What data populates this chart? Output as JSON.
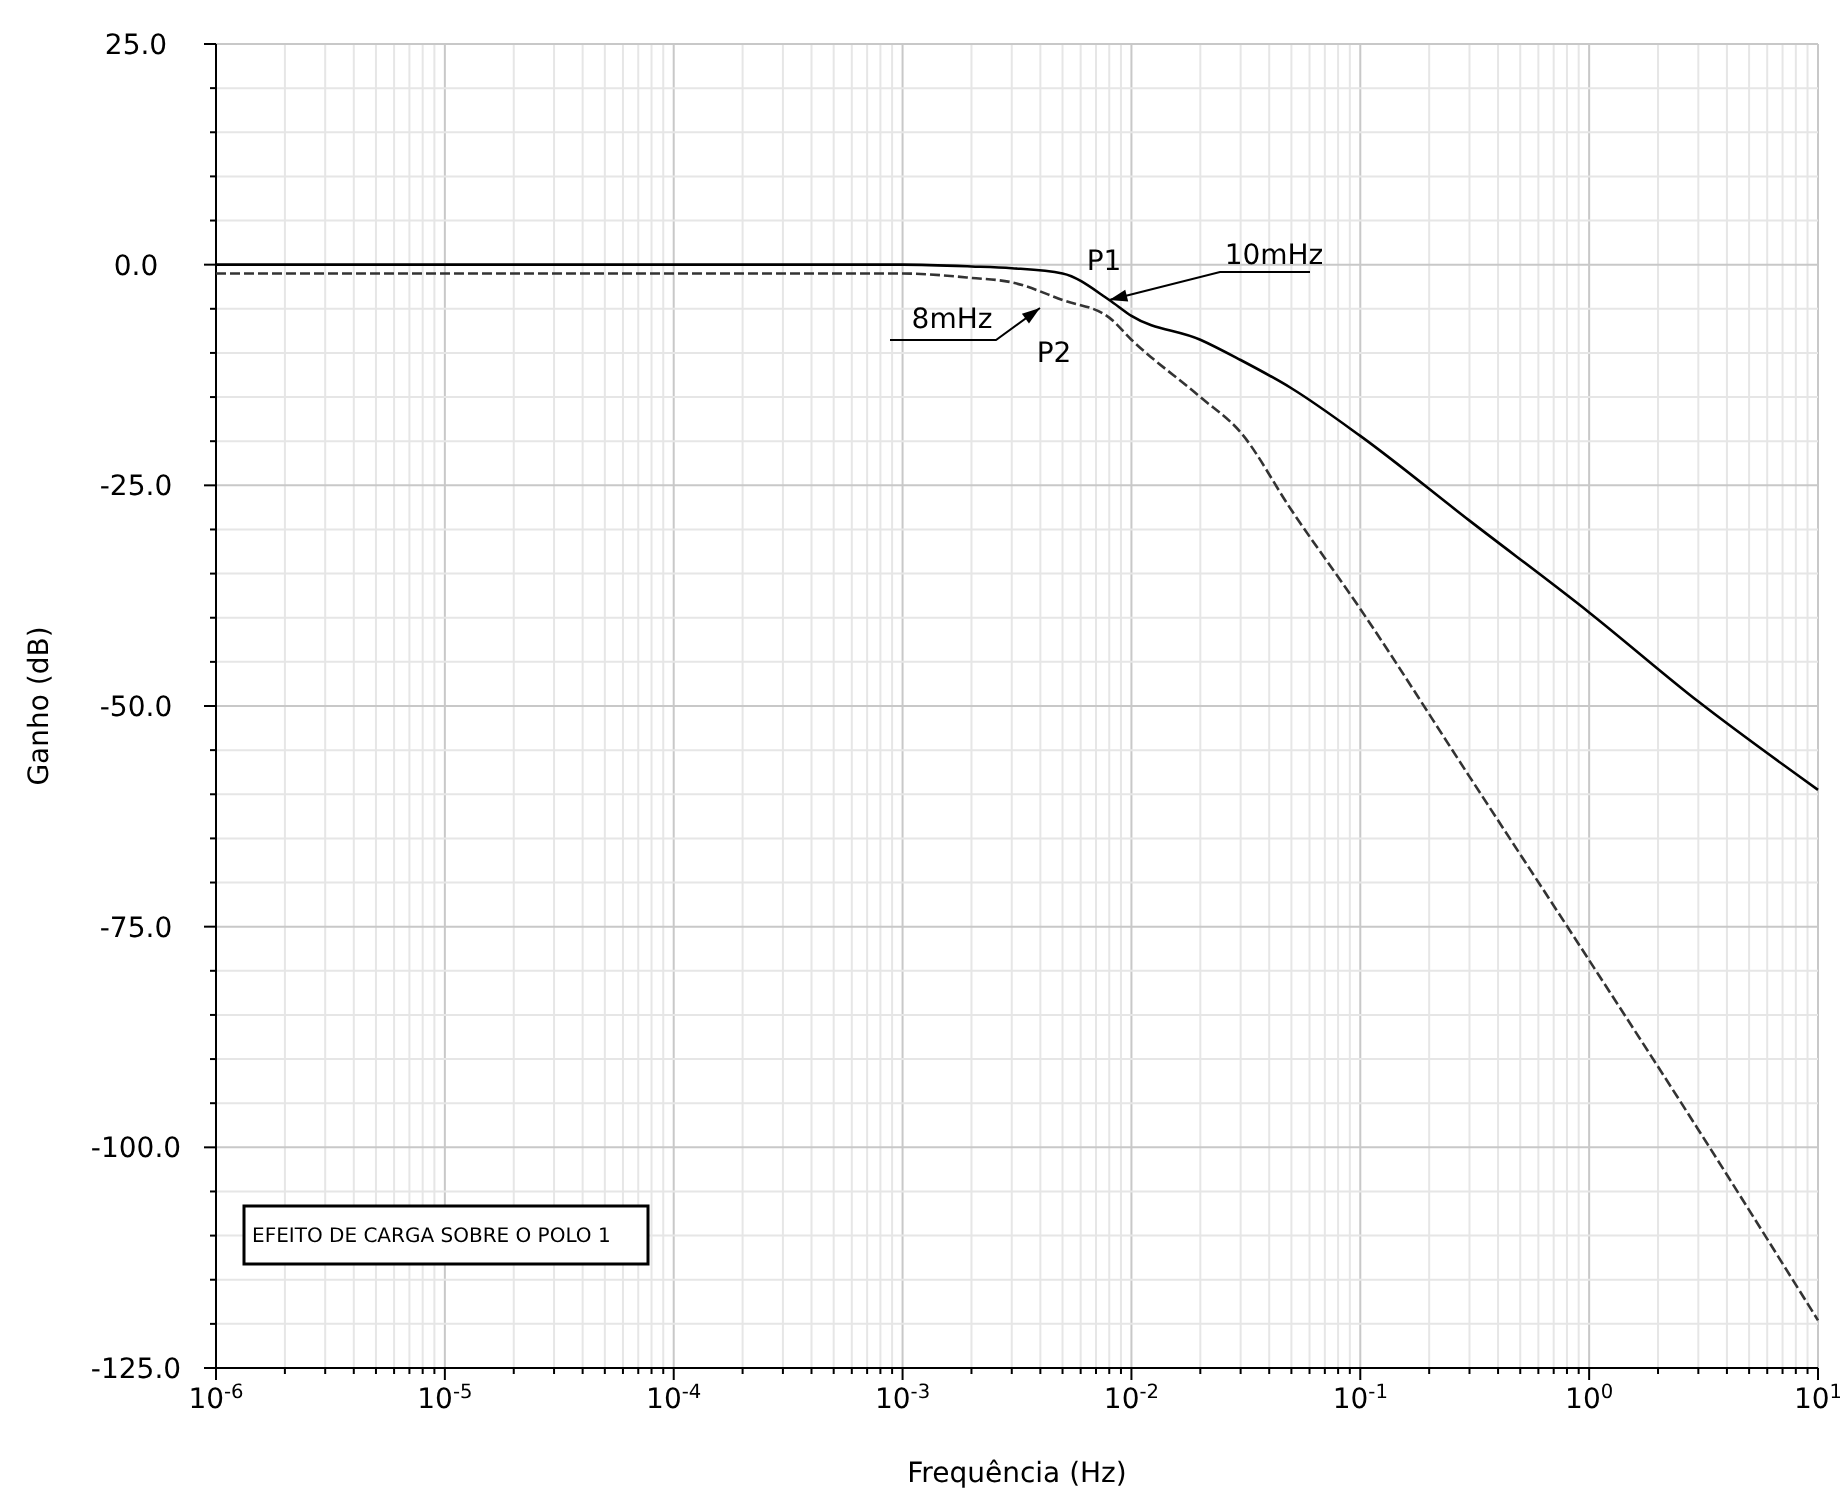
{
  "chart_data": {
    "type": "line",
    "xlabel": "Frequência (Hz)",
    "ylabel": "Ganho (dB)",
    "log": "x",
    "grid": true,
    "marker": "none",
    "xlim": [
      1e-06,
      10
    ],
    "ylim": [
      -125,
      25
    ],
    "xticks": [
      {
        "value": 1e-06,
        "label": "10$^{-6}$"
      },
      {
        "value": 2e-06,
        "label": null
      },
      {
        "value": 3e-06,
        "label": null
      },
      {
        "value": 4e-06,
        "label": null
      },
      {
        "value": 5e-06,
        "label": null
      },
      {
        "value": 6e-06,
        "label": null
      },
      {
        "value": 7e-06,
        "label": null
      },
      {
        "value": 8e-06,
        "label": null
      },
      {
        "value": 9e-06,
        "label": null
      },
      {
        "value": 1e-05,
        "label": "10$^{-5}$"
      },
      {
        "value": 2e-05,
        "label": null
      },
      {
        "value": 3e-05,
        "label": null
      },
      {
        "value": 4e-05,
        "label": null
      },
      {
        "value": 5e-05,
        "label": null
      },
      {
        "value": 6e-05,
        "label": null
      },
      {
        "value": 7e-05,
        "label": null
      },
      {
        "value": 8e-05,
        "label": null
      },
      {
        "value": 9e-05,
        "label": null
      },
      {
        "value": 0.0001,
        "label": "10$^{-4}$"
      },
      {
        "value": 0.0002,
        "label": null
      },
      {
        "value": 0.0003,
        "label": null
      },
      {
        "value": 0.0004,
        "label": null
      },
      {
        "value": 0.0005,
        "label": null
      },
      {
        "value": 0.0006,
        "label": null
      },
      {
        "value": 0.0007,
        "label": null
      },
      {
        "value": 0.0008,
        "label": null
      },
      {
        "value": 0.0009,
        "label": null
      },
      {
        "value": 0.001,
        "label": "10$^{-3}$"
      },
      {
        "value": 0.002,
        "label": null
      },
      {
        "value": 0.003,
        "label": null
      },
      {
        "value": 0.004,
        "label": null
      },
      {
        "value": 0.005,
        "label": null
      },
      {
        "value": 0.006,
        "label": null
      },
      {
        "value": 0.007,
        "label": null
      },
      {
        "value": 0.008,
        "label": null
      },
      {
        "value": 0.009,
        "label": null
      },
      {
        "value": 0.01,
        "label": "10$^{-2}$"
      },
      {
        "value": 0.02,
        "label": null
      },
      {
        "value": 0.03,
        "label": null
      },
      {
        "value": 0.04,
        "label": null
      },
      {
        "value": 0.05,
        "label": null
      },
      {
        "value": 0.06,
        "label": null
      },
      {
        "value": 0.07,
        "label": null
      },
      {
        "value": 0.08,
        "label": null
      },
      {
        "value": 0.09,
        "label": null
      },
      {
        "value": 0.1,
        "label": "10$^{-1}$"
      },
      {
        "value": 0.2,
        "label": null
      },
      {
        "value": 0.3,
        "label": null
      },
      {
        "value": 0.4,
        "label": null
      },
      {
        "value": 0.5,
        "label": null
      },
      {
        "value": 0.6,
        "label": null
      },
      {
        "value": 0.7,
        "label": null
      },
      {
        "value": 0.8,
        "label": null
      },
      {
        "value": 0.9,
        "label": null
      },
      {
        "value": 1,
        "label": "10$^{0}$"
      },
      {
        "value": 2,
        "label": null
      },
      {
        "value": 3,
        "label": null
      },
      {
        "value": 4,
        "label": null
      },
      {
        "value": 5,
        "label": null
      },
      {
        "value": 6,
        "label": null
      },
      {
        "value": 7,
        "label": null
      },
      {
        "value": 8,
        "label": null
      },
      {
        "value": 9,
        "label": null
      },
      {
        "value": 10,
        "label": "10$^{1}$"
      }
    ],
    "yticks": [
      {
        "value": -125,
        "label": "-125.0"
      },
      {
        "value": -120,
        "label": null
      },
      {
        "value": -115,
        "label": null
      },
      {
        "value": -110,
        "label": null
      },
      {
        "value": -105,
        "label": null
      },
      {
        "value": -100,
        "label": "-100.0"
      },
      {
        "value": -95,
        "label": null
      },
      {
        "value": -90,
        "label": null
      },
      {
        "value": -85,
        "label": null
      },
      {
        "value": -80,
        "label": null
      },
      {
        "value": -75,
        "label": "-75.0"
      },
      {
        "value": -70,
        "label": null
      },
      {
        "value": -65,
        "label": null
      },
      {
        "value": -60,
        "label": null
      },
      {
        "value": -55,
        "label": null
      },
      {
        "value": -50,
        "label": "-50.0"
      },
      {
        "value": -45,
        "label": null
      },
      {
        "value": -40,
        "label": null
      },
      {
        "value": -35,
        "label": null
      },
      {
        "value": -30,
        "label": null
      },
      {
        "value": -25,
        "label": "-25.0"
      },
      {
        "value": -20,
        "label": null
      },
      {
        "value": -15,
        "label": null
      },
      {
        "value": -10,
        "label": null
      },
      {
        "value": -5,
        "label": null
      },
      {
        "value": 0,
        "label": "0.0"
      },
      {
        "value": 5,
        "label": null
      },
      {
        "value": 10,
        "label": null
      },
      {
        "value": 15,
        "label": null
      },
      {
        "value": 20,
        "label": null
      },
      {
        "value": 25,
        "label": "25.0"
      }
    ],
    "series": [
      {
        "color": "#000000",
        "line_style": "solid",
        "x": [
          1e-06,
          1e-05,
          0.0001,
          0.001,
          0.002,
          0.003,
          0.005,
          0.008,
          0.01,
          0.02,
          0.03,
          0.05,
          0.1,
          0.3,
          1,
          3,
          10
        ],
        "values": [
          0,
          0,
          0,
          0,
          -0.2,
          -0.4,
          -1,
          -4,
          -5.8,
          -8.5,
          -10.8,
          -14,
          -19.4,
          -29,
          -39.4,
          -49.5,
          -59.5
        ]
      },
      {
        "color": "#333333",
        "line_style": "dashed",
        "x": [
          1e-06,
          1e-05,
          0.0001,
          0.001,
          0.002,
          0.003,
          0.005,
          0.008,
          0.01,
          0.02,
          0.03,
          0.05,
          0.1,
          0.3,
          1,
          3,
          10
        ],
        "values": [
          -1,
          -1,
          -1,
          -1,
          -1.5,
          -2,
          -4,
          -6,
          -8.5,
          -15,
          -19,
          -27.8,
          -39,
          -58,
          -78.8,
          -98,
          -119.6
        ]
      }
    ],
    "annotations": [
      "P1",
      {
        "text": "10mHz",
        "x": 0.008,
        "y": -4
      },
      "8mHz",
      "P2",
      "EFEITO DE CARGA SOBRE O POLO 1"
    ]
  }
}
